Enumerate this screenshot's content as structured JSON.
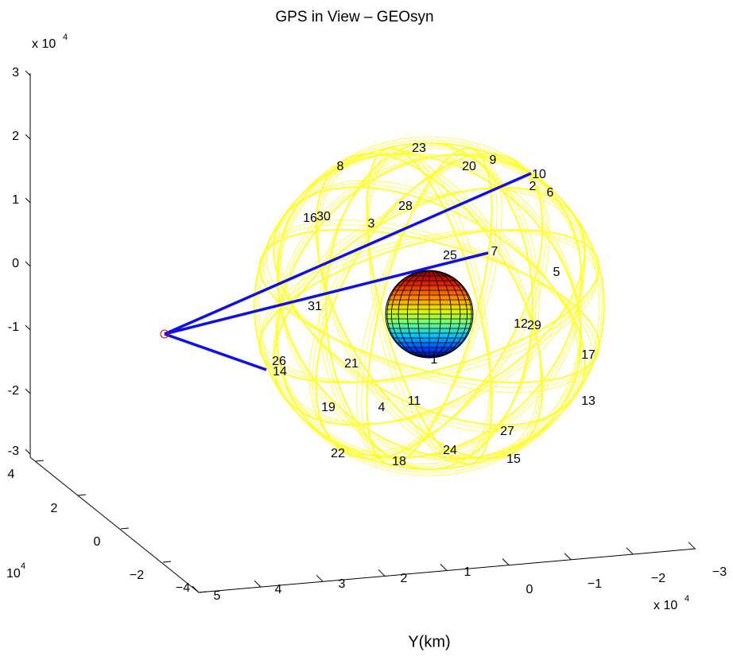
{
  "title": "GPS in View – GEOsyn",
  "z_axis": {
    "ticks": [
      "3",
      "2",
      "1",
      "0",
      "-1",
      "-2",
      "-3"
    ],
    "exponent_base": "x 10",
    "exponent_power": "4"
  },
  "x_axis": {
    "ticks": [
      "4",
      "2",
      "0",
      "−2",
      "−4"
    ],
    "exponent_base": "10",
    "exponent_power": "4"
  },
  "y_axis": {
    "label": "Y(km)",
    "ticks": [
      "5",
      "4",
      "3",
      "2",
      "1",
      "0",
      "−1",
      "−2",
      "−3"
    ],
    "exponent_base": "x 10",
    "exponent_power": "4"
  },
  "satellites": [
    "23",
    "20",
    "9",
    "10",
    "2",
    "6",
    "8",
    "28",
    "16",
    "30",
    "3",
    "25",
    "7",
    "5",
    "31",
    "12",
    "29",
    "17",
    "26",
    "14",
    "21",
    "1",
    "13",
    "19",
    "4",
    "11",
    "27",
    "22",
    "24",
    "18",
    "15"
  ]
}
